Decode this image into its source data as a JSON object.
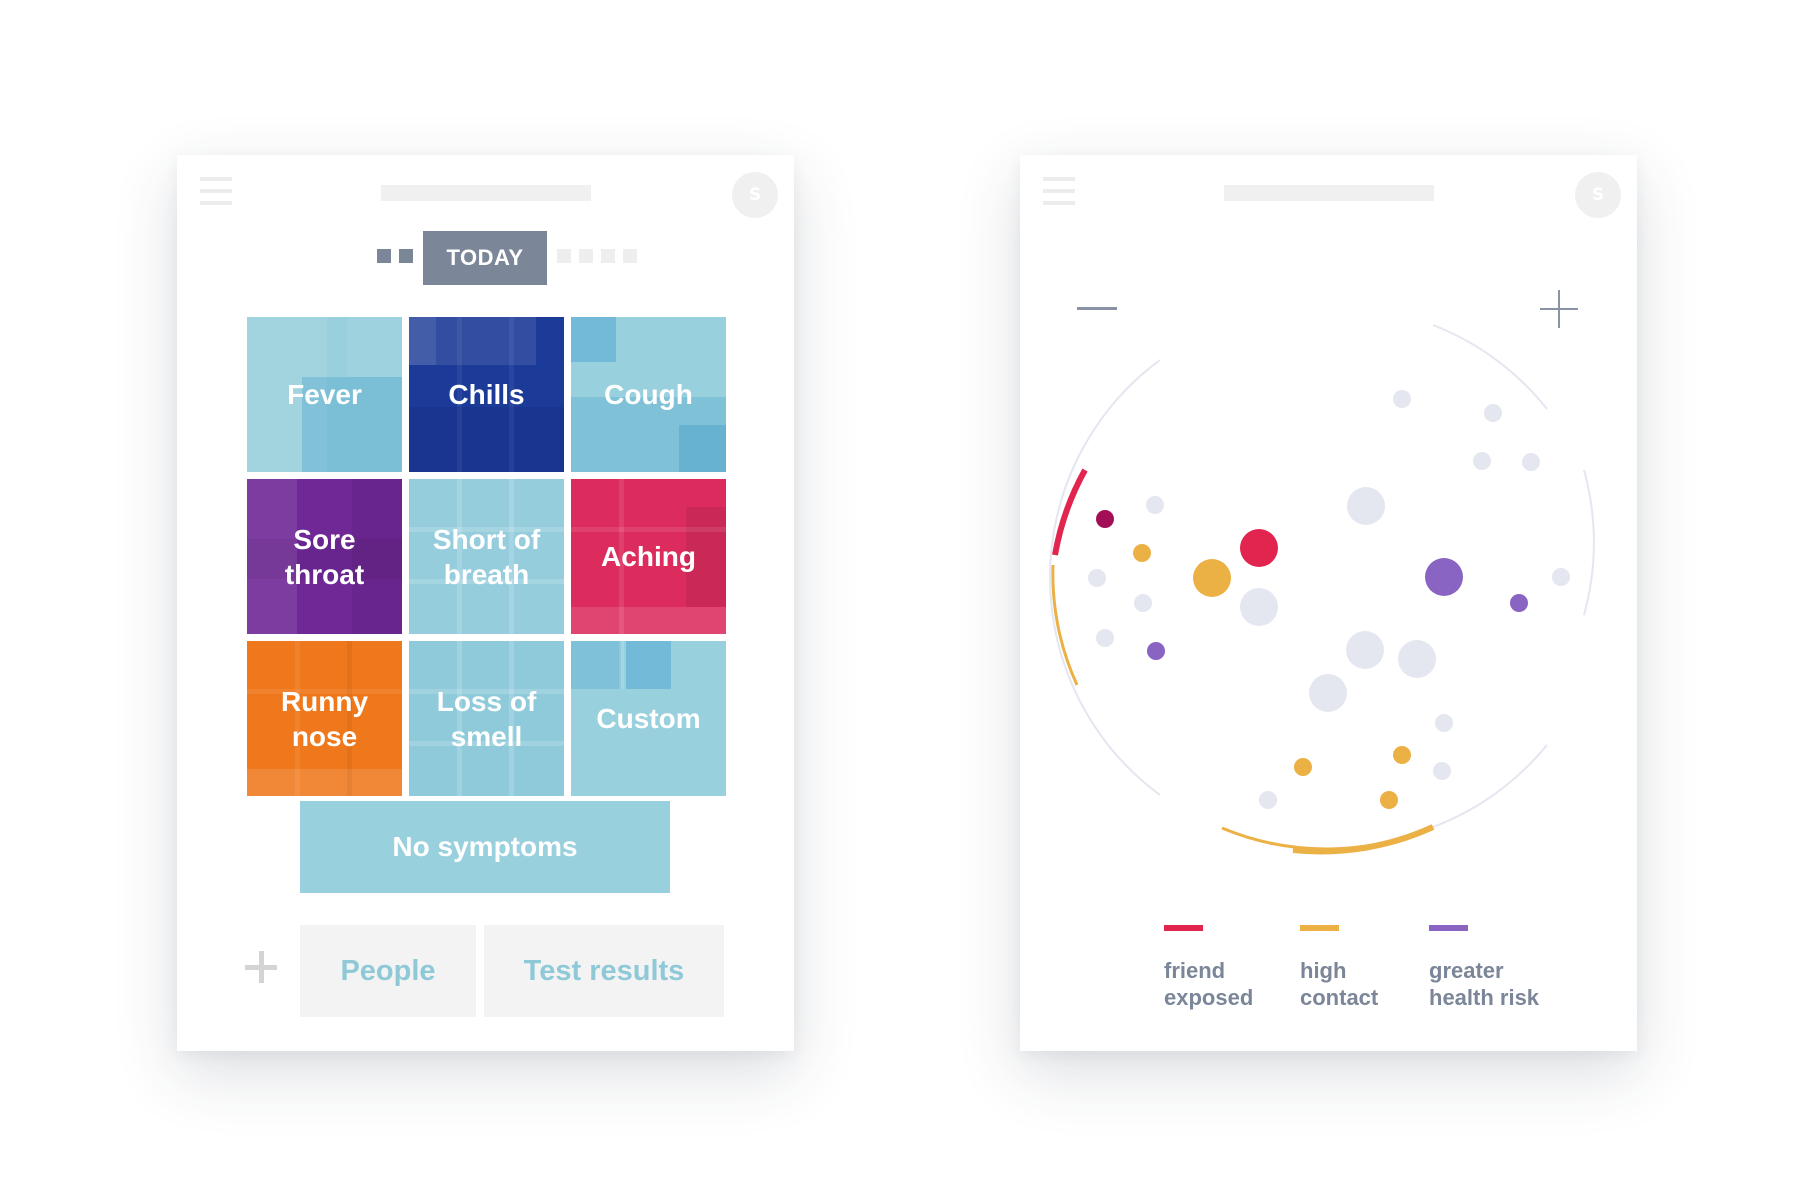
{
  "symptom_screen": {
    "avatar_initial": "S",
    "today_label": "TODAY",
    "tiles": [
      {
        "label": "Fever",
        "color": "#98d0dd"
      },
      {
        "label": "Chills",
        "color": "#1c3a97"
      },
      {
        "label": "Cough",
        "color": "#98d0dd"
      },
      {
        "label": "Sore\nthroat",
        "color": "#6f2896"
      },
      {
        "label": "Short of\nbreath",
        "color": "#8fcadb"
      },
      {
        "label": "Aching",
        "color": "#dc2c5e"
      },
      {
        "label": "Runny\nnose",
        "color": "#f0781c"
      },
      {
        "label": "Loss of\nsmell",
        "color": "#8fcadb"
      },
      {
        "label": "Custom",
        "color": "#98d0dd"
      }
    ],
    "no_symptoms_label": "No symptoms",
    "people_label": "People",
    "test_results_label": "Test results"
  },
  "network_screen": {
    "avatar_initial": "S",
    "legend": [
      {
        "label": "friend\nexposed",
        "color": "#e2254f"
      },
      {
        "label": "high\ncontact",
        "color": "#ecb145"
      },
      {
        "label": "greater\nhealth risk",
        "color": "#8a64c2"
      }
    ]
  },
  "colors": {
    "friend_exposed": "#e2254f",
    "high_contact": "#ecb145",
    "greater_health_risk": "#8a64c2",
    "neutral": "#e4e6f0"
  }
}
